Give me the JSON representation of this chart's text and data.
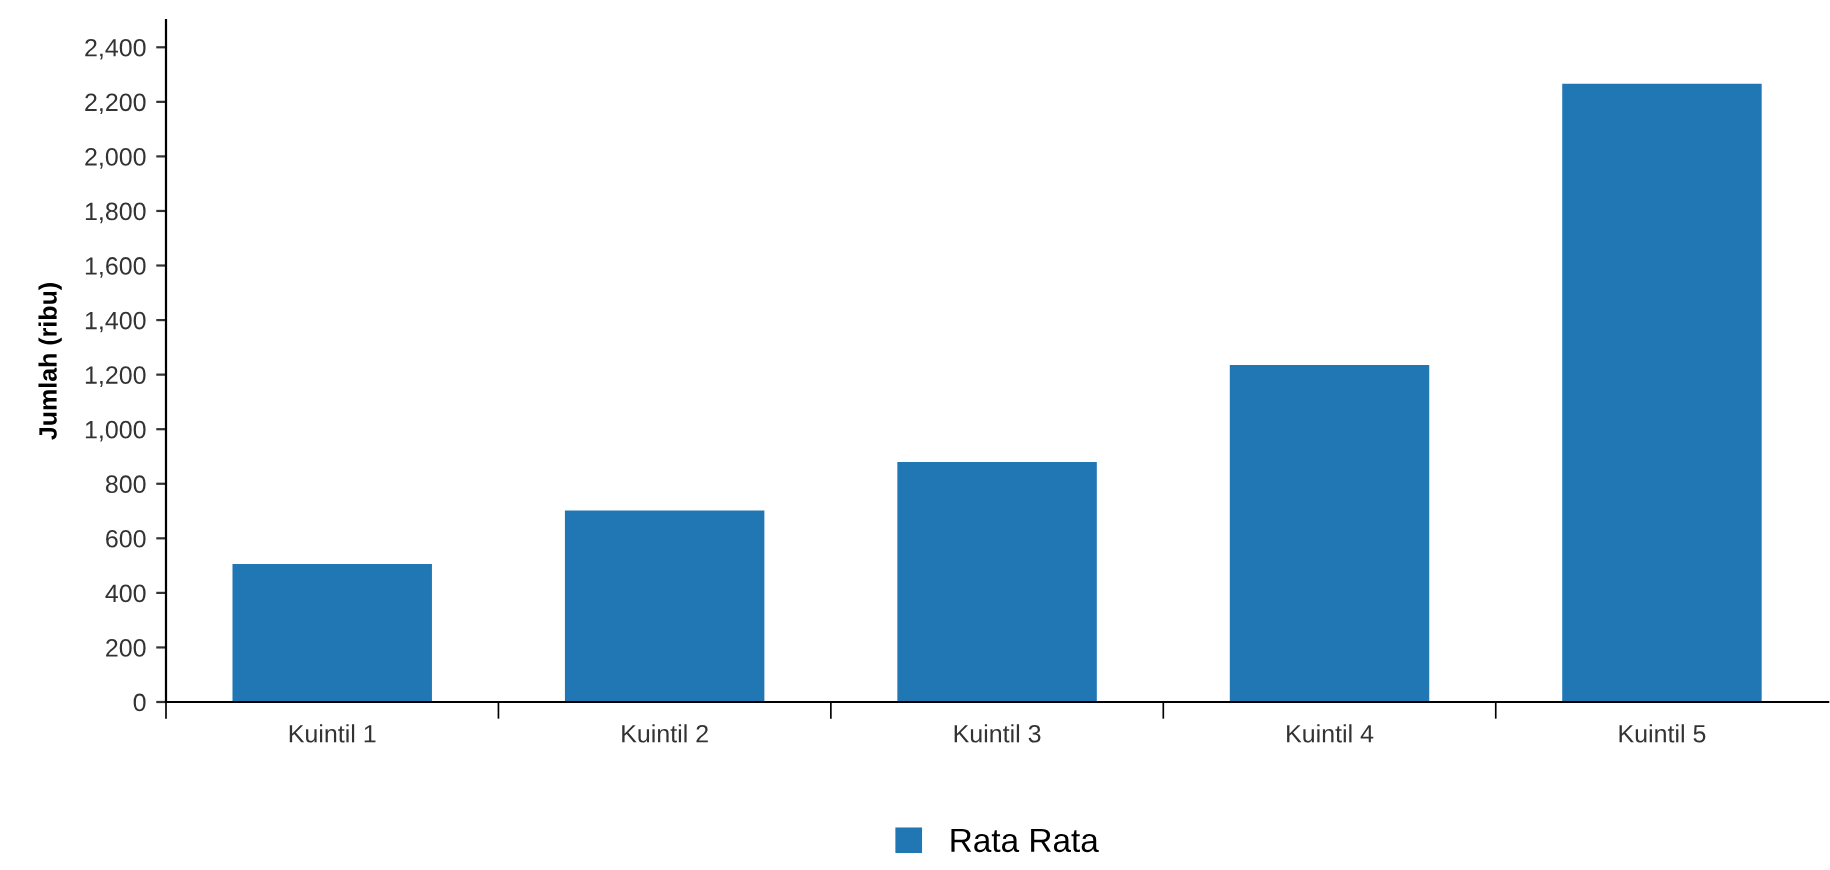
{
  "chart_data": {
    "type": "bar",
    "ylabel": "Jumlah (ribu)",
    "categories": [
      "Kuintil 1",
      "Kuintil 2",
      "Kuintil 3",
      "Kuintil 4",
      "Kuintil 5"
    ],
    "series": [
      {
        "name": "Rata Rata",
        "color": "#2077b4",
        "values": [
          506,
          702,
          880,
          1235,
          2266
        ]
      }
    ],
    "ylim": [
      0,
      2500
    ],
    "yticks": [
      {
        "value": 0,
        "label": "0"
      },
      {
        "value": 200,
        "label": "200"
      },
      {
        "value": 400,
        "label": "400"
      },
      {
        "value": 600,
        "label": "600"
      },
      {
        "value": 800,
        "label": "800"
      },
      {
        "value": 1000,
        "label": "1,000"
      },
      {
        "value": 1200,
        "label": "1,200"
      },
      {
        "value": 1400,
        "label": "1,400"
      },
      {
        "value": 1600,
        "label": "1,600"
      },
      {
        "value": 1800,
        "label": "1,800"
      },
      {
        "value": 2000,
        "label": "2,000"
      },
      {
        "value": 2200,
        "label": "2,200"
      },
      {
        "value": 2400,
        "label": "2,400"
      }
    ],
    "grid": false,
    "legend": "bottom"
  }
}
